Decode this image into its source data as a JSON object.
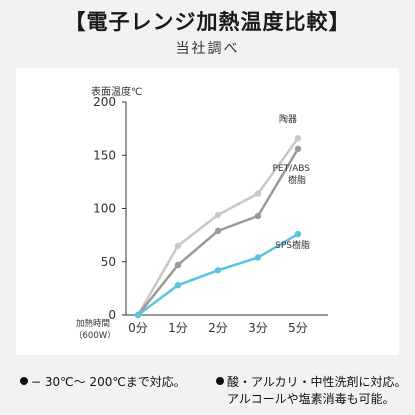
{
  "header": {
    "title": "【電子レンジ加熱温度比較】",
    "subtitle": "当社調べ"
  },
  "chart_data": {
    "type": "line",
    "ylabel": "表面温度℃",
    "xlabel_line1": "加熱時間",
    "xlabel_line2": "（600W）",
    "x": [
      "0分",
      "1分",
      "2分",
      "3分",
      "5分"
    ],
    "yticks": [
      0,
      50,
      100,
      150,
      200
    ],
    "ylim": [
      0,
      200
    ],
    "grid": false,
    "series": [
      {
        "name": "陶器",
        "values": [
          0,
          65,
          94,
          114,
          166
        ],
        "color": "#c8c8c8"
      },
      {
        "name": "PET/ABS樹脂",
        "values": [
          0,
          47,
          79,
          93,
          156
        ],
        "color": "#9a9a9a"
      },
      {
        "name": "SPS樹脂",
        "values": [
          0,
          28,
          42,
          54,
          76
        ],
        "color": "#5bc3e2"
      }
    ]
  },
  "footer": {
    "left_lines": [
      "− 30℃〜 200℃まで対応。"
    ],
    "right_lines": [
      "酸・アルカリ・中性洗剤に対応。",
      "アルコールや塩素消毒も可能。"
    ]
  }
}
